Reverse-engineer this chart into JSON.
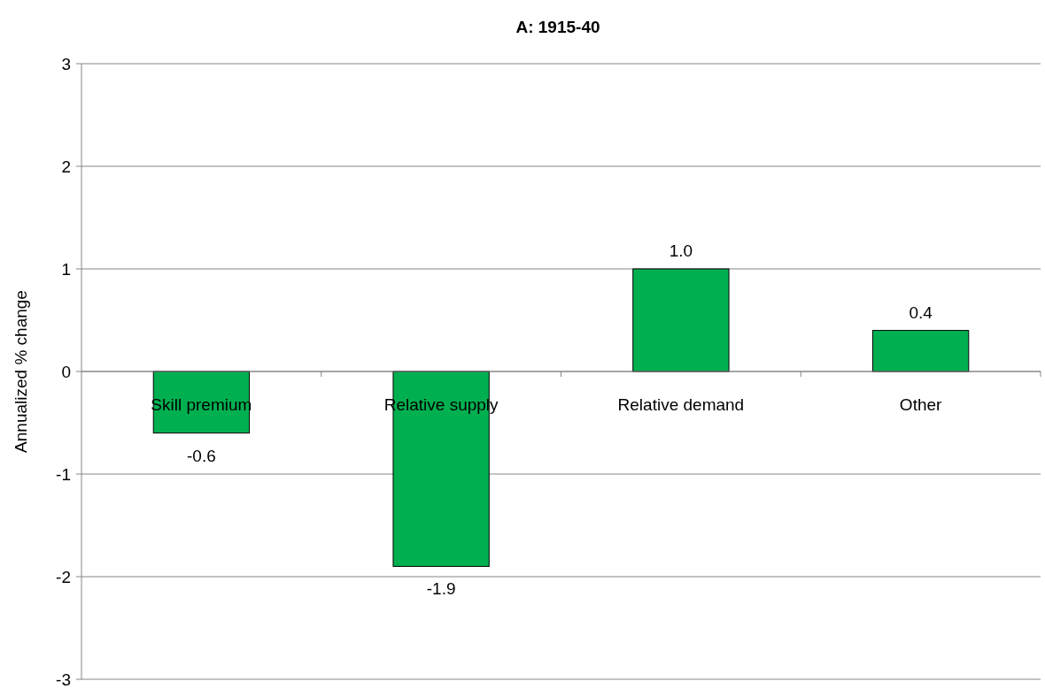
{
  "chart_data": {
    "type": "bar",
    "title": "A: 1915-40",
    "ylabel": "Annualized % change",
    "categories": [
      "Skill premium",
      "Relative supply",
      "Relative demand",
      "Other"
    ],
    "values": [
      -0.6,
      -1.9,
      1.0,
      0.4
    ],
    "value_labels": [
      "-0.6",
      "-1.9",
      "1.0",
      "0.4"
    ],
    "color": "#00b050",
    "ylim": [
      -3,
      3
    ],
    "yticks": [
      -3,
      -2,
      -1,
      0,
      1,
      2,
      3
    ],
    "grid": "y"
  }
}
